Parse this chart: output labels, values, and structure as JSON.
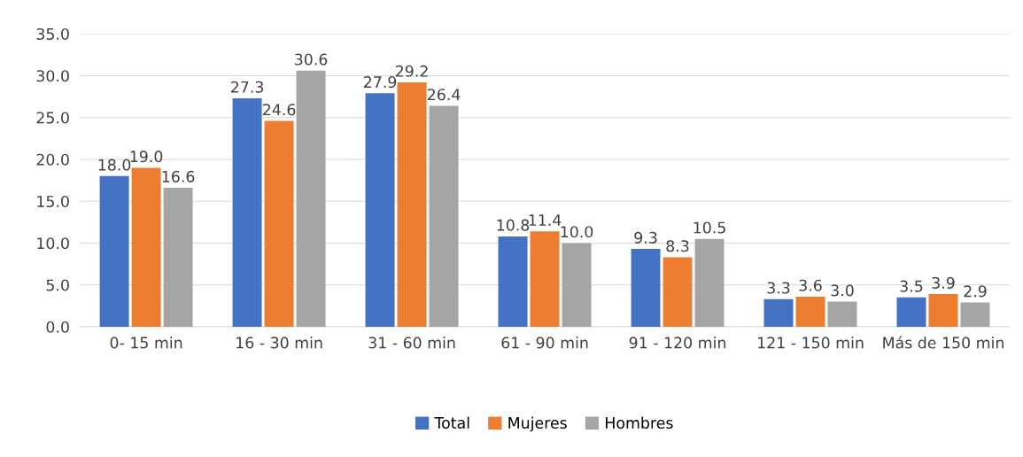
{
  "chart_data": {
    "type": "bar",
    "categories": [
      "0- 15 min",
      "16 - 30 min",
      "31 - 60 min",
      "61 - 90 min",
      "91 - 120 min",
      "121 - 150 min",
      "Más de 150 min"
    ],
    "series": [
      {
        "name": "Total",
        "color": "#4472c4",
        "values": [
          18.0,
          27.3,
          27.9,
          10.8,
          9.3,
          3.3,
          3.5
        ],
        "value_labels": [
          "18.0",
          "27.3",
          "27.9",
          "10.8",
          "9.3",
          "3.3",
          "3.5"
        ]
      },
      {
        "name": "Mujeres",
        "color": "#ed7d31",
        "values": [
          19.0,
          24.6,
          29.2,
          11.4,
          8.3,
          3.6,
          3.9
        ],
        "value_labels": [
          "19.0",
          "24.6",
          "29.2",
          "11.4",
          "8.3",
          "3.6",
          "3.9"
        ]
      },
      {
        "name": "Hombres",
        "color": "#a5a5a5",
        "values": [
          16.6,
          30.6,
          26.4,
          10.0,
          10.5,
          3.0,
          2.9
        ],
        "value_labels": [
          "16.6",
          "30.6",
          "26.4",
          "10.0",
          "10.5",
          "3.0",
          "2.9"
        ]
      }
    ],
    "ylim": [
      0,
      35
    ],
    "yticks": [
      {
        "value": 0,
        "label": "0.0"
      },
      {
        "value": 5,
        "label": "5.0"
      },
      {
        "value": 10,
        "label": "10.0"
      },
      {
        "value": 15,
        "label": "15.0"
      },
      {
        "value": 20,
        "label": "20.0"
      },
      {
        "value": 25,
        "label": "25.0"
      },
      {
        "value": 30,
        "label": "30.0"
      },
      {
        "value": 35,
        "label": "35.0"
      }
    ],
    "grid": "y",
    "legend": "bottom"
  }
}
